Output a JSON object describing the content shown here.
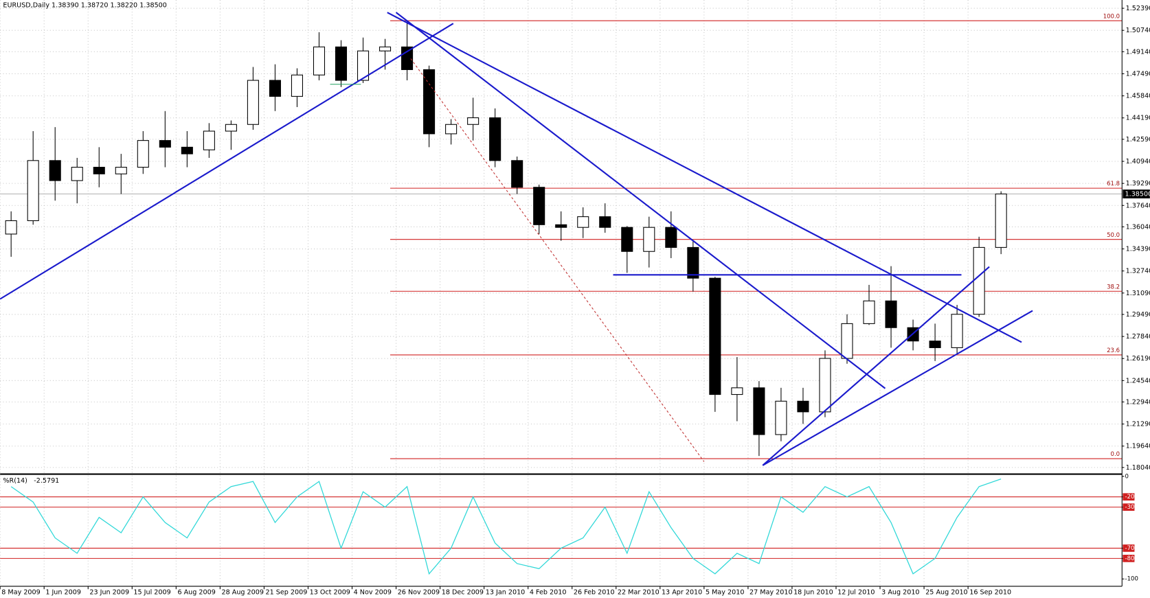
{
  "chart_data": [
    {
      "type": "candlestick",
      "title": "EURUSD,Daily  1.38390 1.38720 1.38220 1.38500",
      "categories": [
        "8 May 2009",
        null,
        "1 Jun 2009",
        null,
        "23 Jun 2009",
        null,
        "15 Jul 2009",
        null,
        "6 Aug 2009",
        null,
        "28 Aug 2009",
        null,
        "21 Sep 2009",
        null,
        "13 Oct 2009",
        null,
        "4 Nov 2009",
        null,
        "26 Nov 2009",
        null,
        "18 Dec 2009",
        null,
        "13 Jan 2010",
        null,
        "4 Feb 2010",
        null,
        "26 Feb 2010",
        null,
        "22 Mar 2010",
        null,
        "13 Apr 2010",
        null,
        "5 May 2010",
        null,
        "27 May 2010",
        null,
        "18 Jun 2010",
        null,
        "12 Jul 2010",
        null,
        "3 Aug 2010",
        null,
        "25 Aug 2010",
        null,
        "16 Sep 2010",
        null
      ],
      "open": [
        1.355,
        1.365,
        1.41,
        1.395,
        1.405,
        1.4,
        1.405,
        1.425,
        1.42,
        1.418,
        1.432,
        1.437,
        1.47,
        1.458,
        1.474,
        1.495,
        1.47,
        1.492,
        1.495,
        1.478,
        1.43,
        1.437,
        1.442,
        1.41,
        1.39,
        1.362,
        1.36,
        1.368,
        1.36,
        1.342,
        1.36,
        1.345,
        1.322,
        1.235,
        1.24,
        1.205,
        1.23,
        1.222,
        1.262,
        1.288,
        1.305,
        1.285,
        1.275,
        1.27,
        1.295,
        1.345
      ],
      "high": [
        1.372,
        1.432,
        1.435,
        1.412,
        1.42,
        1.415,
        1.432,
        1.447,
        1.432,
        1.438,
        1.44,
        1.48,
        1.482,
        1.479,
        1.506,
        1.5,
        1.502,
        1.501,
        1.514,
        1.481,
        1.441,
        1.457,
        1.449,
        1.413,
        1.392,
        1.372,
        1.375,
        1.378,
        1.361,
        1.368,
        1.372,
        1.35,
        1.323,
        1.263,
        1.245,
        1.24,
        1.24,
        1.268,
        1.295,
        1.317,
        1.331,
        1.291,
        1.288,
        1.302,
        1.353,
        1.387
      ],
      "low": [
        1.338,
        1.362,
        1.38,
        1.378,
        1.39,
        1.385,
        1.4,
        1.405,
        1.405,
        1.412,
        1.418,
        1.433,
        1.447,
        1.45,
        1.47,
        1.465,
        1.468,
        1.478,
        1.47,
        1.42,
        1.422,
        1.425,
        1.405,
        1.385,
        1.355,
        1.35,
        1.352,
        1.356,
        1.326,
        1.33,
        1.337,
        1.312,
        1.222,
        1.215,
        1.189,
        1.2,
        1.213,
        1.218,
        1.258,
        1.287,
        1.27,
        1.268,
        1.26,
        1.265,
        1.293,
        1.34
      ],
      "close": [
        1.365,
        1.41,
        1.395,
        1.405,
        1.4,
        1.405,
        1.425,
        1.42,
        1.415,
        1.432,
        1.437,
        1.47,
        1.458,
        1.474,
        1.495,
        1.47,
        1.492,
        1.495,
        1.478,
        1.43,
        1.437,
        1.442,
        1.41,
        1.39,
        1.362,
        1.36,
        1.368,
        1.36,
        1.342,
        1.36,
        1.345,
        1.322,
        1.235,
        1.24,
        1.205,
        1.23,
        1.222,
        1.262,
        1.288,
        1.305,
        1.285,
        1.275,
        1.27,
        1.295,
        1.345,
        1.385
      ],
      "ylim": [
        1.1765,
        1.529
      ],
      "yticks": [
        {
          "value": 1.5239,
          "label": "1.52390"
        },
        {
          "value": 1.5074,
          "label": "1.50740"
        },
        {
          "value": 1.4914,
          "label": "1.49140"
        },
        {
          "value": 1.4749,
          "label": "1.47490"
        },
        {
          "value": 1.4584,
          "label": "1.45840"
        },
        {
          "value": 1.4419,
          "label": "1.44190"
        },
        {
          "value": 1.4259,
          "label": "1.42590"
        },
        {
          "value": 1.4094,
          "label": "1.40940"
        },
        {
          "value": 1.3929,
          "label": "1.39290"
        },
        {
          "value": 1.3764,
          "label": "1.37640"
        },
        {
          "value": 1.3604,
          "label": "1.36040"
        },
        {
          "value": 1.3439,
          "label": "1.34390"
        },
        {
          "value": 1.3274,
          "label": "1.32740"
        },
        {
          "value": 1.3109,
          "label": "1.31090"
        },
        {
          "value": 1.2949,
          "label": "1.29490"
        },
        {
          "value": 1.2784,
          "label": "1.27840"
        },
        {
          "value": 1.2619,
          "label": "1.26190"
        },
        {
          "value": 1.2454,
          "label": "1.24540"
        },
        {
          "value": 1.2294,
          "label": "1.22940"
        },
        {
          "value": 1.2129,
          "label": "1.21290"
        },
        {
          "value": 1.1964,
          "label": "1.19640"
        },
        {
          "value": 1.1804,
          "label": "1.18040"
        }
      ],
      "last_price": {
        "value": 1.385,
        "label": "1.38500"
      },
      "fib_levels": [
        {
          "value": 1.5146,
          "label": "100.0"
        },
        {
          "value": 1.3893,
          "label": "61.8"
        },
        {
          "value": 1.351,
          "label": "50.0"
        },
        {
          "value": 1.3122,
          "label": "38.2"
        },
        {
          "value": 1.2646,
          "label": "23.6"
        },
        {
          "value": 1.187,
          "label": "0.0"
        }
      ],
      "grid": true
    },
    {
      "type": "line",
      "name": "%R(14)",
      "color": "#30d8d8",
      "values": [
        -10,
        -25,
        -60,
        -75,
        -40,
        -55,
        -20,
        -45,
        -60,
        -25,
        -10,
        -5,
        -45,
        -20,
        -5,
        -70,
        -15,
        -30,
        -10,
        -95,
        -70,
        -20,
        -65,
        -85,
        -90,
        -70,
        -60,
        -30,
        -75,
        -15,
        -50,
        -80,
        -95,
        -75,
        -85,
        -20,
        -35,
        -10,
        -20,
        -10,
        -45,
        -95,
        -80,
        -40,
        -10,
        -2.5791
      ],
      "ylim": [
        -100,
        0
      ],
      "yticks": [
        0,
        -20,
        -30,
        -70,
        -80,
        -100
      ],
      "levels": [
        -20,
        -30,
        -70,
        -80
      ]
    }
  ]
}
